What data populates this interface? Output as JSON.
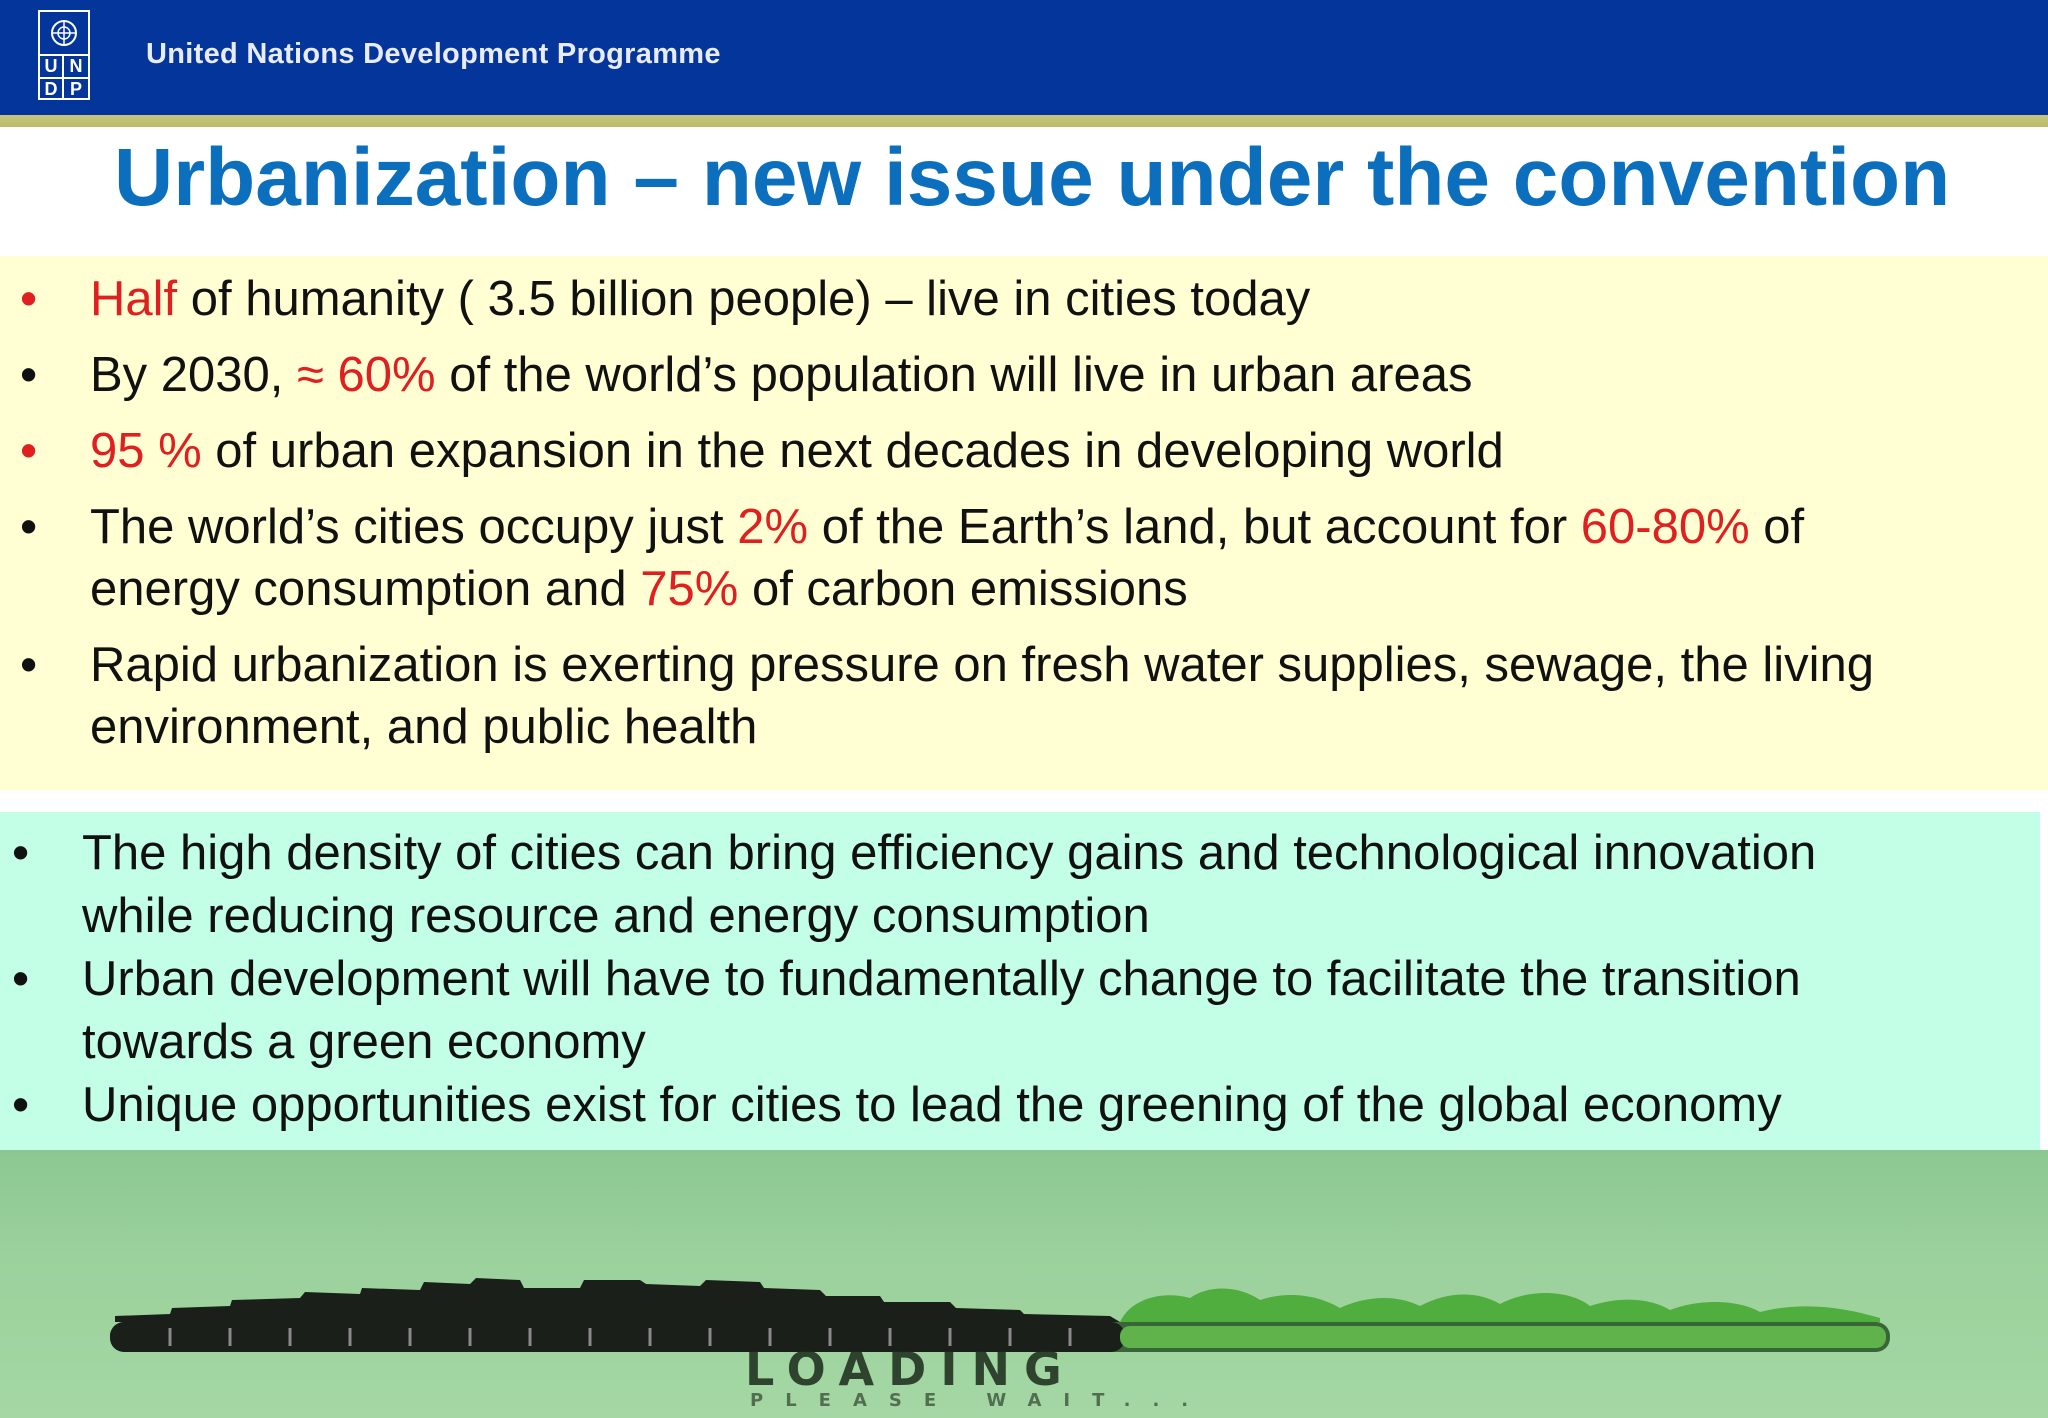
{
  "header": {
    "logo_letters": [
      "U",
      "N",
      "D",
      "P"
    ],
    "org_name": "United Nations Development Programme",
    "background": "#03359a"
  },
  "title": "Urbanization – new issue under the convention",
  "highlight_color": "#e02020",
  "title_color": "#0b6fbd",
  "facts": [
    {
      "bullet_color": "red",
      "parts": [
        {
          "text": "Half",
          "highlight": true
        },
        {
          "text": " of humanity  ( 3.5 billion people) – live in cities today",
          "highlight": false
        }
      ]
    },
    {
      "bullet_color": "black",
      "parts": [
        {
          "text": "By 2030, ",
          "highlight": false
        },
        {
          "text": "≈ 60%",
          "highlight": true
        },
        {
          "text": " of the world’s population will live in urban areas",
          "highlight": false
        }
      ]
    },
    {
      "bullet_color": "red",
      "parts": [
        {
          "text": "95 %",
          "highlight": true
        },
        {
          "text": " of urban expansion in the next decades in developing world",
          "highlight": false
        }
      ]
    },
    {
      "bullet_color": "black",
      "lines": [
        [
          {
            "text": "The world’s cities occupy just ",
            "highlight": false
          },
          {
            "text": "2%",
            "highlight": true
          },
          {
            "text": " of the Earth’s land, but account for ",
            "highlight": false
          },
          {
            "text": "60-80%",
            "highlight": true
          },
          {
            "text": " of",
            "highlight": false
          }
        ],
        [
          {
            "text": "energy consumption and ",
            "highlight": false
          },
          {
            "text": "75%",
            "highlight": true
          },
          {
            "text": " of carbon emissions",
            "highlight": false
          }
        ]
      ]
    },
    {
      "bullet_color": "black",
      "lines": [
        [
          {
            "text": "Rapid urbanization is exerting pressure on fresh water supplies, sewage, the living",
            "highlight": false
          }
        ],
        [
          {
            "text": "environment, and public health",
            "highlight": false
          }
        ]
      ]
    }
  ],
  "opportunities": [
    {
      "line1": "The high density of cities can bring efficiency gains and technological innovation",
      "line2": "while reducing resource and energy consumption"
    },
    {
      "line1": "Urban development will have to fundamentally change to facilitate the transition",
      "line2": "towards a green economy"
    },
    {
      "line1": "Unique opportunities exist for cities to lead the greening of the global economy",
      "line2": ""
    }
  ],
  "loading_banner": {
    "label": "LOADING",
    "sublabel": "PLEASE WAIT...",
    "progress": 0.57
  }
}
